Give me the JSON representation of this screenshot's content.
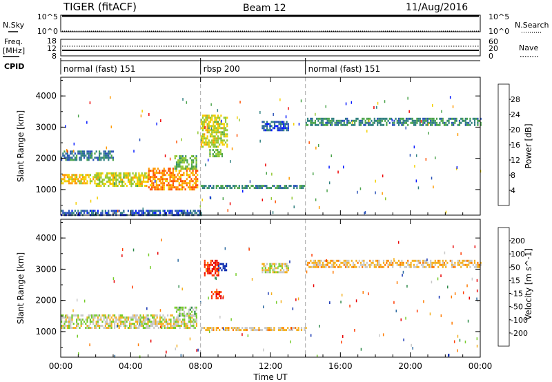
{
  "header": {
    "station": "TIGER (fitACF)",
    "beam": "Beam 12",
    "date": "11/Aug/2016"
  },
  "top_panels": {
    "nsky_label": "N.Sky",
    "nsky_ticks": [
      "10^5",
      "10^0"
    ],
    "nsearch_label": "N.Search",
    "freq_label": "Freq.",
    "freq_unit": "[MHz]",
    "freq_ticks": [
      "18",
      "12",
      "8"
    ],
    "nave_label": "Nave",
    "nave_ticks": [
      "60",
      "20",
      "0"
    ],
    "cpid_label": "CPID"
  },
  "cpid_segments": [
    {
      "label": "normal (fast) 151",
      "start_hour": 0,
      "end_hour": 8
    },
    {
      "label": "rbsp 200",
      "start_hour": 8,
      "end_hour": 14
    },
    {
      "label": "normal (fast) 151",
      "start_hour": 14,
      "end_hour": 24
    }
  ],
  "x_axis": {
    "label": "Time UT",
    "ticks": [
      "00:00",
      "04:00",
      "08:00",
      "12:00",
      "16:00",
      "20:00",
      "00:00"
    ],
    "range_hours": [
      0,
      24
    ]
  },
  "power_panel": {
    "ylabel": "Slant Range [km]",
    "yticks": [
      "4000",
      "3000",
      "2000",
      "1000"
    ],
    "colorbar_label": "Power [dB]",
    "colorbar_ticks": [
      "28",
      "24",
      "20",
      "16",
      "12",
      "8",
      "4"
    ],
    "colorbar_colors": [
      "#0016ff",
      "#2a52b8",
      "#2f7f7f",
      "#4aa34a",
      "#92c832",
      "#f4d000",
      "#ff9a00",
      "#ff5000",
      "#ee0000"
    ]
  },
  "velocity_panel": {
    "ylabel": "Slant Range [km]",
    "yticks": [
      "4000",
      "3000",
      "2000",
      "1000"
    ],
    "colorbar_label": "Velocity [m s^-1]",
    "colorbar_ticks": [
      "200",
      "100",
      "50",
      "15",
      "-15",
      "-50",
      "-100",
      "-200"
    ],
    "colorbar_colors": [
      "#1030b0",
      "#2c6aa0",
      "#2d8a4a",
      "#76cc2a",
      "#c8c8c8",
      "#f4b020",
      "#ff7a00",
      "#ff3a00",
      "#e80000"
    ]
  },
  "chart_data": [
    {
      "type": "heatmap",
      "title": "Power",
      "xlabel": "Time UT",
      "ylabel": "Slant Range [km]",
      "xlim": [
        0,
        24
      ],
      "ylim": [
        180,
        4600
      ],
      "colorbar": {
        "label": "Power [dB]",
        "range": [
          0,
          32
        ]
      },
      "regions": [
        {
          "t": [
            0,
            2.0
          ],
          "range": [
            1200,
            1500
          ],
          "value": 20
        },
        {
          "t": [
            2.0,
            5.0
          ],
          "range": [
            1150,
            1550
          ],
          "value": 18
        },
        {
          "t": [
            5.0,
            7.8
          ],
          "range": [
            1000,
            1700
          ],
          "value": 24
        },
        {
          "t": [
            6.5,
            7.8
          ],
          "range": [
            1700,
            2100
          ],
          "value": 14
        },
        {
          "t": [
            8.0,
            9.5
          ],
          "range": [
            2400,
            3400
          ],
          "value": 18
        },
        {
          "t": [
            8.5,
            9.2
          ],
          "range": [
            2050,
            2300
          ],
          "value": 14
        },
        {
          "t": [
            8.0,
            14.0
          ],
          "range": [
            1050,
            1150
          ],
          "value": 10
        },
        {
          "t": [
            11.5,
            13.0
          ],
          "range": [
            2900,
            3200
          ],
          "value": 6
        },
        {
          "t": [
            14.0,
            24.0
          ],
          "range": [
            3100,
            3300
          ],
          "value": 10
        },
        {
          "t": [
            0,
            8.0
          ],
          "range": [
            200,
            350
          ],
          "value": 6
        },
        {
          "t": [
            0,
            3.0
          ],
          "range": [
            1950,
            2250
          ],
          "value": 8
        }
      ]
    },
    {
      "type": "heatmap",
      "title": "Velocity",
      "xlabel": "Time UT",
      "ylabel": "Slant Range [km]",
      "xlim": [
        0,
        24
      ],
      "ylim": [
        180,
        4600
      ],
      "colorbar": {
        "label": "Velocity [m s^-1]",
        "range": [
          -200,
          200
        ]
      },
      "regions": [
        {
          "t": [
            0,
            7.8
          ],
          "range": [
            1150,
            1550
          ],
          "value": 0
        },
        {
          "t": [
            6.5,
            7.8
          ],
          "range": [
            1500,
            1800
          ],
          "value": -30
        },
        {
          "t": [
            8.2,
            9.0
          ],
          "range": [
            2800,
            3300
          ],
          "value": 150
        },
        {
          "t": [
            8.6,
            9.2
          ],
          "range": [
            2100,
            2300
          ],
          "value": 150
        },
        {
          "t": [
            9.0,
            9.5
          ],
          "range": [
            3000,
            3200
          ],
          "value": -200
        },
        {
          "t": [
            11.5,
            13.0
          ],
          "range": [
            2900,
            3200
          ],
          "value": 0
        },
        {
          "t": [
            14.0,
            24.0
          ],
          "range": [
            3100,
            3300
          ],
          "value": 30
        },
        {
          "t": [
            8.0,
            14.0
          ],
          "range": [
            1050,
            1150
          ],
          "value": 30
        }
      ]
    }
  ]
}
